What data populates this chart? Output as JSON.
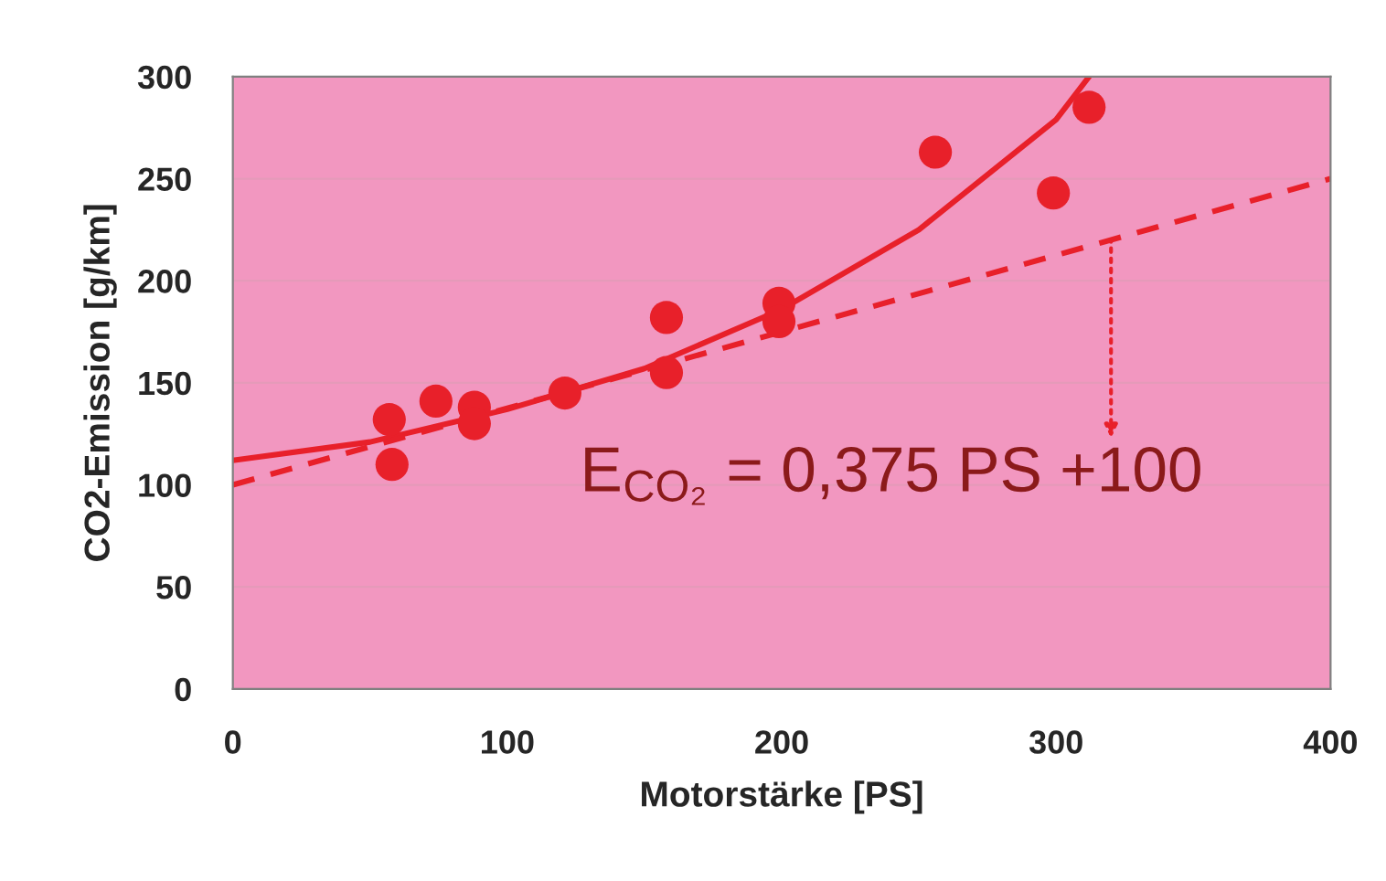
{
  "chart_data": {
    "type": "scatter",
    "xlabel": "Motorstärke [PS]",
    "ylabel": "CO2-Emission [g/km]",
    "xlim": [
      0,
      400
    ],
    "xticks": [
      0,
      100,
      200,
      300,
      400
    ],
    "ylim": [
      0,
      300
    ],
    "yticks": [
      0,
      50,
      100,
      150,
      200,
      250,
      300
    ],
    "grid": "y",
    "legend": false,
    "marker": "circle",
    "series": [
      {
        "color": "#e8202a",
        "x": [
          57,
          58,
          74,
          88,
          88,
          121,
          158,
          158,
          199,
          199,
          256,
          299,
          312
        ],
        "values": [
          132,
          110,
          141,
          138,
          130,
          145,
          182,
          155,
          189,
          180,
          263,
          243,
          285
        ]
      },
      {
        "type": "line",
        "color": "#e8202a",
        "line_style": "solid",
        "marker": "none",
        "x": [
          0,
          50,
          100,
          150,
          200,
          250,
          300,
          312
        ],
        "values": [
          112,
          121,
          137,
          157,
          186,
          225,
          279,
          300
        ]
      },
      {
        "type": "line",
        "color": "#e8202a",
        "line_style": "dashed",
        "marker": "none",
        "x": [
          0,
          400
        ],
        "values": [
          100,
          250
        ]
      }
    ],
    "annotations": [
      {
        "text": "E$_{CO₂}$ = 0,375 PS +100",
        "x": 320,
        "y": 220
      }
    ]
  }
}
